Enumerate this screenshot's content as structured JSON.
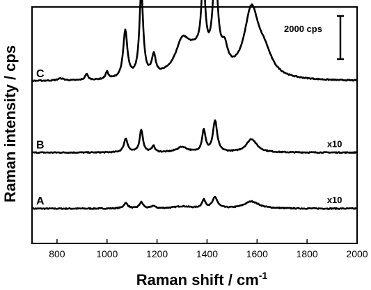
{
  "chart_data": {
    "type": "line",
    "xlabel": "Raman shift / cm",
    "xlabel_superscript": "-1",
    "ylabel": "Raman intensity / cps",
    "xlim": [
      700,
      2000
    ],
    "x_ticks": [
      800,
      1000,
      1200,
      1400,
      1600,
      1800,
      2000
    ],
    "y_ticks_shown": false,
    "scale_bar": {
      "label": "2000 cps",
      "value": 2000
    },
    "baselines": {
      "A": 0,
      "B": 2600,
      "C": 5900
    },
    "series": [
      {
        "name": "A",
        "multiplier": "x10",
        "peaks": [
          {
            "x": 1075,
            "h": 250,
            "w": 10
          },
          {
            "x": 1137,
            "h": 290,
            "w": 9
          },
          {
            "x": 1185,
            "h": 120,
            "w": 8
          },
          {
            "x": 1300,
            "h": 100,
            "w": 40
          },
          {
            "x": 1387,
            "h": 370,
            "w": 9
          },
          {
            "x": 1432,
            "h": 500,
            "w": 12
          },
          {
            "x": 1578,
            "h": 330,
            "w": 35
          }
        ]
      },
      {
        "name": "B",
        "multiplier": "x10",
        "peaks": [
          {
            "x": 1075,
            "h": 640,
            "w": 9
          },
          {
            "x": 1137,
            "h": 1050,
            "w": 8
          },
          {
            "x": 1185,
            "h": 300,
            "w": 7
          },
          {
            "x": 1300,
            "h": 250,
            "w": 25
          },
          {
            "x": 1387,
            "h": 1020,
            "w": 8
          },
          {
            "x": 1432,
            "h": 1450,
            "w": 10
          },
          {
            "x": 1578,
            "h": 620,
            "w": 25
          }
        ]
      },
      {
        "name": "C",
        "multiplier": "",
        "peaks": [
          {
            "x": 815,
            "h": 100,
            "w": 15
          },
          {
            "x": 918,
            "h": 280,
            "w": 7
          },
          {
            "x": 1000,
            "h": 330,
            "w": 7
          },
          {
            "x": 1073,
            "h": 2200,
            "w": 10
          },
          {
            "x": 1137,
            "h": 4000,
            "w": 9
          },
          {
            "x": 1187,
            "h": 900,
            "w": 9
          },
          {
            "x": 1300,
            "h": 1100,
            "w": 30
          },
          {
            "x": 1385,
            "h": 3500,
            "w": 9
          },
          {
            "x": 1433,
            "h": 4300,
            "w": 12
          },
          {
            "x": 1350,
            "h": 1250,
            "w": 70
          },
          {
            "x": 1470,
            "h": 900,
            "w": 15
          },
          {
            "x": 1578,
            "h": 3100,
            "w": 35
          },
          {
            "x": 1630,
            "h": 900,
            "w": 35
          }
        ]
      }
    ]
  }
}
